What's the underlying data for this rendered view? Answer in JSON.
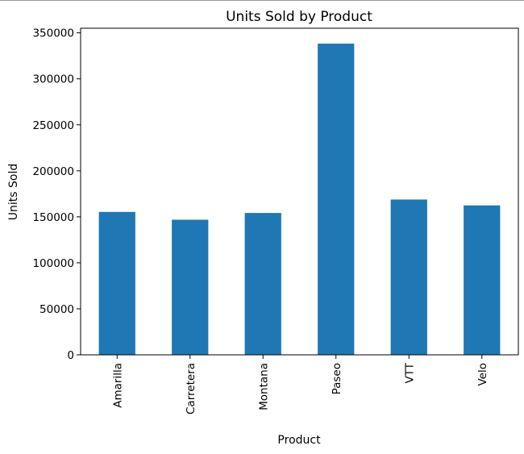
{
  "chart_data": {
    "type": "bar",
    "title": "Units Sold by Product",
    "xlabel": "Product",
    "ylabel": "Units Sold",
    "categories": [
      "Amarilla",
      "Carretera",
      "Montana",
      "Paseo",
      "VTT",
      "Velo"
    ],
    "values": [
      155315,
      146846,
      154198,
      338239,
      168783,
      162424
    ],
    "ylim": [
      0,
      355000
    ],
    "yticks": [
      0,
      50000,
      100000,
      150000,
      200000,
      250000,
      300000,
      350000
    ],
    "grid": false,
    "bar_color": "#1f77b4"
  }
}
